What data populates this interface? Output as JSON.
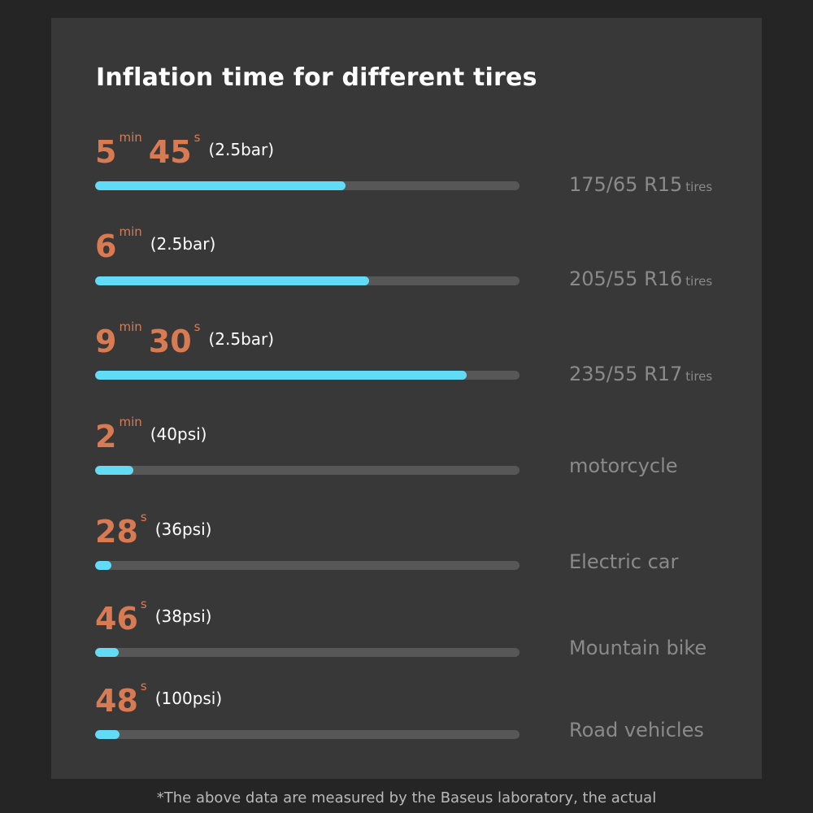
{
  "title": "Inflation time for different tires",
  "footnote": "*The above data are measured by the Baseus laboratory, the actual",
  "colors": {
    "background": "#252525",
    "panel": "#383838",
    "time_accent": "#d97b52",
    "bar_fill": "#62dcf6",
    "bar_track": "#575757",
    "label": "#8a8a8a"
  },
  "chart_data": {
    "type": "bar",
    "orientation": "horizontal",
    "title": "Inflation time for different tires",
    "unit_note": "bar length proportional to inflation time",
    "categories": [
      "175/65 R15 tires",
      "205/55 R16 tires",
      "235/55 R17 tires",
      "motorcycle",
      "Electric car",
      "Mountain bike",
      "Road vehicles"
    ],
    "values_seconds": [
      345,
      360,
      570,
      120,
      28,
      46,
      48
    ],
    "fill_fraction": [
      0.59,
      0.645,
      0.875,
      0.09,
      0.038,
      0.055,
      0.058
    ],
    "rows": [
      {
        "time_parts": [
          {
            "num": "5",
            "unit": "min"
          },
          {
            "num": "45",
            "unit": "s"
          }
        ],
        "pressure": "(2.5bar)",
        "label_main": "175/65 R15",
        "label_small": "tires"
      },
      {
        "time_parts": [
          {
            "num": "6",
            "unit": "min"
          }
        ],
        "pressure": "(2.5bar)",
        "label_main": "205/55 R16",
        "label_small": "tires"
      },
      {
        "time_parts": [
          {
            "num": "9",
            "unit": "min"
          },
          {
            "num": "30",
            "unit": "s"
          }
        ],
        "pressure": "(2.5bar)",
        "label_main": "235/55 R17",
        "label_small": "tires"
      },
      {
        "time_parts": [
          {
            "num": "2",
            "unit": "min"
          }
        ],
        "pressure": "(40psi)",
        "label_main": "motorcycle",
        "label_small": ""
      },
      {
        "time_parts": [
          {
            "num": "28",
            "unit": "s"
          }
        ],
        "pressure": "(36psi)",
        "label_main": "Electric car",
        "label_small": ""
      },
      {
        "time_parts": [
          {
            "num": "46",
            "unit": "s"
          }
        ],
        "pressure": "(38psi)",
        "label_main": "Mountain bike",
        "label_small": ""
      },
      {
        "time_parts": [
          {
            "num": "48",
            "unit": "s"
          }
        ],
        "pressure": "(100psi)",
        "label_main": "Road vehicles",
        "label_small": ""
      }
    ]
  }
}
